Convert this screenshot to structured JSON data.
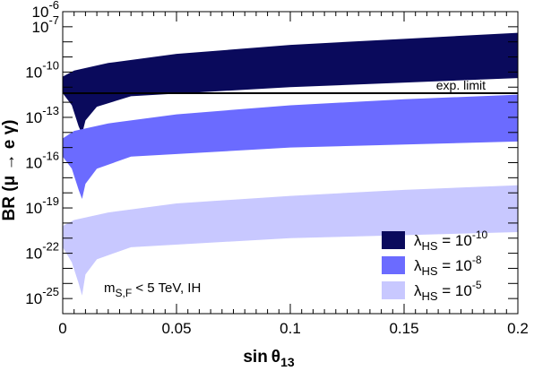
{
  "chart_data": {
    "type": "scatter",
    "xlabel": {
      "main": "sin",
      "greek": "θ",
      "sub": "13"
    },
    "ylabel": {
      "main": "BR (μ → e γ)"
    },
    "xlim": [
      0,
      0.2
    ],
    "ylim_log10": [
      -26,
      -6
    ],
    "y_scale": "log",
    "x_ticks": [
      {
        "value": 0,
        "label": "0"
      },
      {
        "value": 0.05,
        "label": "0.05"
      },
      {
        "value": 0.1,
        "label": "0.1"
      },
      {
        "value": 0.15,
        "label": "0.15"
      },
      {
        "value": 0.2,
        "label": "0.2"
      }
    ],
    "y_ticks": [
      {
        "exp": -6,
        "base": "10",
        "power": "-6"
      },
      {
        "exp": -7,
        "base": "10",
        "power": "-7"
      },
      {
        "exp": -10,
        "base": "10",
        "power": "-10"
      },
      {
        "exp": -13,
        "base": "10",
        "power": "-13"
      },
      {
        "exp": -16,
        "base": "10",
        "power": "-16"
      },
      {
        "exp": -19,
        "base": "10",
        "power": "-19"
      },
      {
        "exp": -22,
        "base": "10",
        "power": "-22"
      },
      {
        "exp": -25,
        "base": "10",
        "power": "-25"
      }
    ],
    "exp_limit": {
      "value_log10": -11.4,
      "label": "exp. limit"
    },
    "annotation": {
      "main": "m",
      "sub": "S,F",
      "rest": " < 5 TeV,  IH"
    },
    "legend_position": "bottom-right",
    "series": [
      {
        "legend": {
          "lambda": "λ",
          "sub": "HS",
          "eq": " = 10",
          "power": "-10"
        },
        "color": "#0a0a5c",
        "upper_log10": [
          [
            0.0,
            -10.3
          ],
          [
            0.005,
            -9.9
          ],
          [
            0.02,
            -9.4
          ],
          [
            0.05,
            -8.8
          ],
          [
            0.1,
            -8.2
          ],
          [
            0.15,
            -7.8
          ],
          [
            0.2,
            -7.4
          ]
        ],
        "lower_log10": [
          [
            0.0,
            -11.4
          ],
          [
            0.004,
            -12.2
          ],
          [
            0.007,
            -13.6
          ],
          [
            0.0085,
            -14.1
          ],
          [
            0.01,
            -13.2
          ],
          [
            0.015,
            -12.3
          ],
          [
            0.03,
            -11.6
          ],
          [
            0.1,
            -11.0
          ],
          [
            0.2,
            -10.4
          ]
        ]
      },
      {
        "legend": {
          "lambda": "λ",
          "sub": "HS",
          "eq": " = 10",
          "power": "-8"
        },
        "color": "#6b6bff",
        "upper_log10": [
          [
            0.0,
            -14.4
          ],
          [
            0.005,
            -13.9
          ],
          [
            0.02,
            -13.4
          ],
          [
            0.05,
            -12.8
          ],
          [
            0.1,
            -12.2
          ],
          [
            0.15,
            -11.8
          ],
          [
            0.2,
            -11.5
          ]
        ],
        "lower_log10": [
          [
            0.0,
            -15.6
          ],
          [
            0.004,
            -16.4
          ],
          [
            0.007,
            -17.8
          ],
          [
            0.0085,
            -18.4
          ],
          [
            0.01,
            -17.4
          ],
          [
            0.015,
            -16.4
          ],
          [
            0.03,
            -15.6
          ],
          [
            0.1,
            -15.0
          ],
          [
            0.2,
            -14.6
          ]
        ]
      },
      {
        "legend": {
          "lambda": "λ",
          "sub": "HS",
          "eq": " = 10",
          "power": "-5"
        },
        "color": "#c8c8ff",
        "upper_log10": [
          [
            0.0,
            -20.2
          ],
          [
            0.005,
            -19.8
          ],
          [
            0.02,
            -19.3
          ],
          [
            0.05,
            -18.7
          ],
          [
            0.1,
            -18.2
          ],
          [
            0.15,
            -17.8
          ],
          [
            0.2,
            -17.5
          ]
        ],
        "lower_log10": [
          [
            0.0,
            -21.6
          ],
          [
            0.004,
            -22.6
          ],
          [
            0.007,
            -24.0
          ],
          [
            0.0085,
            -24.8
          ],
          [
            0.01,
            -23.4
          ],
          [
            0.015,
            -22.4
          ],
          [
            0.03,
            -21.6
          ],
          [
            0.1,
            -21.0
          ],
          [
            0.2,
            -20.6
          ]
        ]
      }
    ]
  }
}
